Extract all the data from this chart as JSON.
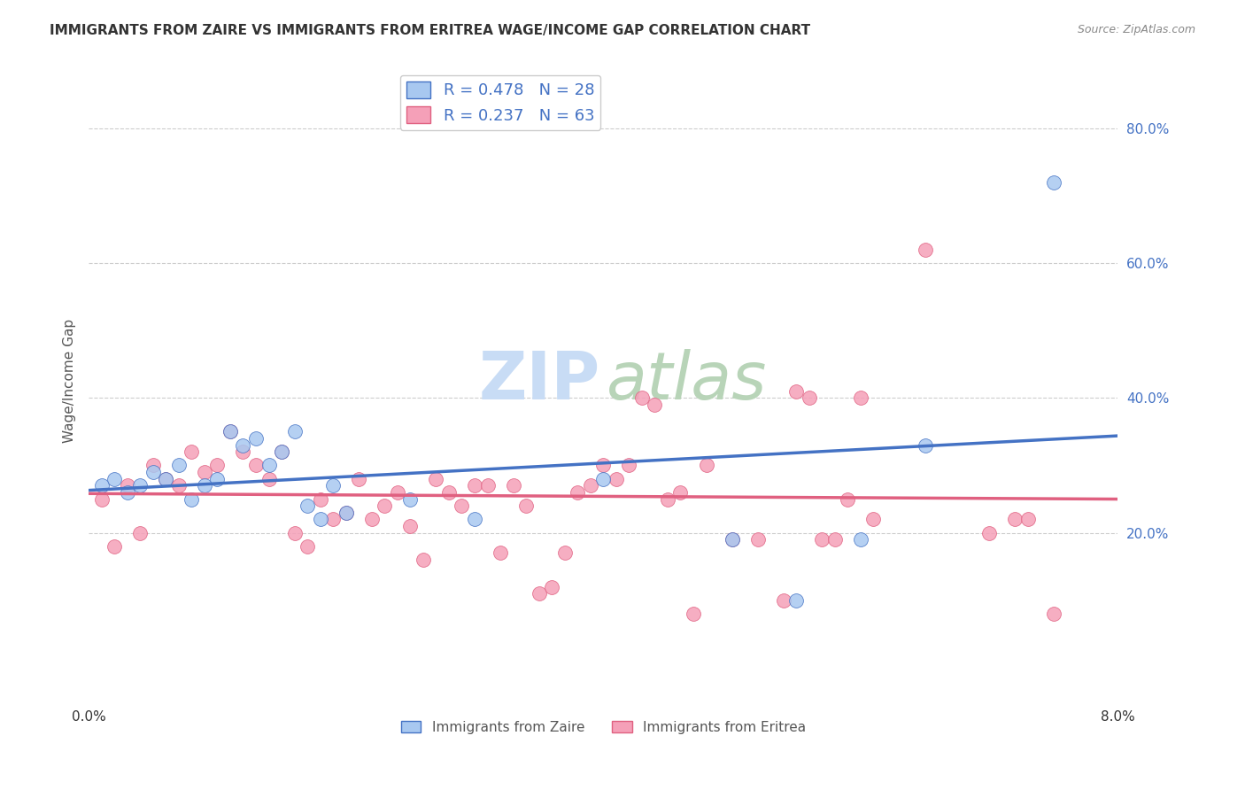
{
  "title": "IMMIGRANTS FROM ZAIRE VS IMMIGRANTS FROM ERITREA WAGE/INCOME GAP CORRELATION CHART",
  "source": "Source: ZipAtlas.com",
  "ylabel": "Wage/Income Gap",
  "ytick_labels": [
    "20.0%",
    "40.0%",
    "60.0%",
    "80.0%"
  ],
  "ytick_values": [
    0.2,
    0.4,
    0.6,
    0.8
  ],
  "R_zaire": 0.478,
  "N_zaire": 28,
  "R_eritrea": 0.237,
  "N_eritrea": 63,
  "color_zaire": "#a8c8f0",
  "color_eritrea": "#f5a0b8",
  "color_zaire_line": "#4472C4",
  "color_eritrea_line": "#E06080",
  "zaire_x": [
    0.001,
    0.002,
    0.003,
    0.004,
    0.005,
    0.006,
    0.007,
    0.008,
    0.009,
    0.01,
    0.011,
    0.012,
    0.013,
    0.014,
    0.015,
    0.016,
    0.017,
    0.018,
    0.019,
    0.02,
    0.025,
    0.03,
    0.04,
    0.05,
    0.055,
    0.06,
    0.065,
    0.075
  ],
  "zaire_y": [
    0.27,
    0.28,
    0.26,
    0.27,
    0.29,
    0.28,
    0.3,
    0.25,
    0.27,
    0.28,
    0.35,
    0.33,
    0.34,
    0.3,
    0.32,
    0.35,
    0.24,
    0.22,
    0.27,
    0.23,
    0.25,
    0.22,
    0.28,
    0.19,
    0.1,
    0.19,
    0.33,
    0.72
  ],
  "eritrea_x": [
    0.001,
    0.002,
    0.003,
    0.004,
    0.005,
    0.006,
    0.007,
    0.008,
    0.009,
    0.01,
    0.011,
    0.012,
    0.013,
    0.014,
    0.015,
    0.016,
    0.017,
    0.018,
    0.019,
    0.02,
    0.021,
    0.022,
    0.023,
    0.024,
    0.025,
    0.026,
    0.027,
    0.028,
    0.029,
    0.03,
    0.031,
    0.032,
    0.033,
    0.034,
    0.035,
    0.036,
    0.037,
    0.038,
    0.039,
    0.04,
    0.041,
    0.042,
    0.043,
    0.044,
    0.045,
    0.046,
    0.047,
    0.048,
    0.05,
    0.052,
    0.054,
    0.055,
    0.056,
    0.057,
    0.058,
    0.059,
    0.06,
    0.061,
    0.065,
    0.07,
    0.072,
    0.073,
    0.075
  ],
  "eritrea_y": [
    0.25,
    0.18,
    0.27,
    0.2,
    0.3,
    0.28,
    0.27,
    0.32,
    0.29,
    0.3,
    0.35,
    0.32,
    0.3,
    0.28,
    0.32,
    0.2,
    0.18,
    0.25,
    0.22,
    0.23,
    0.28,
    0.22,
    0.24,
    0.26,
    0.21,
    0.16,
    0.28,
    0.26,
    0.24,
    0.27,
    0.27,
    0.17,
    0.27,
    0.24,
    0.11,
    0.12,
    0.17,
    0.26,
    0.27,
    0.3,
    0.28,
    0.3,
    0.4,
    0.39,
    0.25,
    0.26,
    0.08,
    0.3,
    0.19,
    0.19,
    0.1,
    0.41,
    0.4,
    0.19,
    0.19,
    0.25,
    0.4,
    0.22,
    0.62,
    0.2,
    0.22,
    0.22,
    0.08
  ],
  "xlim": [
    0.0,
    0.08
  ],
  "ylim": [
    -0.05,
    0.9
  ],
  "figsize": [
    14.06,
    8.92
  ],
  "dpi": 100
}
